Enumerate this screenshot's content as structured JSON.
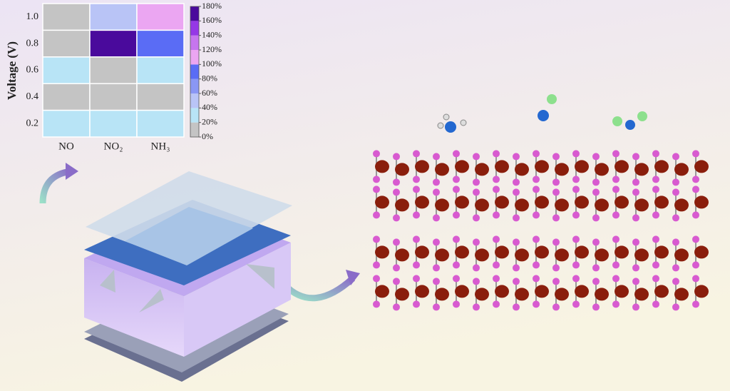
{
  "chart_data": {
    "type": "heatmap",
    "y_label": "Voltage (V)",
    "x_categories": [
      "NO",
      "NO₂",
      "NH₃"
    ],
    "y_categories": [
      "1.0",
      "0.8",
      "0.6",
      "0.4",
      "0.2"
    ],
    "values": [
      [
        10,
        50,
        110
      ],
      [
        10,
        170,
        90
      ],
      [
        30,
        10,
        30
      ],
      [
        10,
        10,
        10
      ],
      [
        30,
        30,
        30
      ]
    ],
    "clim": [
      0,
      180
    ],
    "colors": [
      "#c4c4c4",
      "#b8e4f6",
      "#b9c4f6",
      "#8a97f4",
      "#5a6cf5",
      "#eba6f2",
      "#c676ee",
      "#9538e6",
      "#4a0a9c"
    ],
    "cticks": [
      {
        "value": 0,
        "label": "0%"
      },
      {
        "value": 20,
        "label": "20%"
      },
      {
        "value": 40,
        "label": "40%"
      },
      {
        "value": 60,
        "label": "60%"
      },
      {
        "value": 80,
        "label": "80%"
      },
      {
        "value": 100,
        "label": "100%"
      },
      {
        "value": 120,
        "label": "120%"
      },
      {
        "value": 140,
        "label": "140%"
      },
      {
        "value": 160,
        "label": "160%"
      },
      {
        "value": 180,
        "label": "180%"
      }
    ]
  }
}
